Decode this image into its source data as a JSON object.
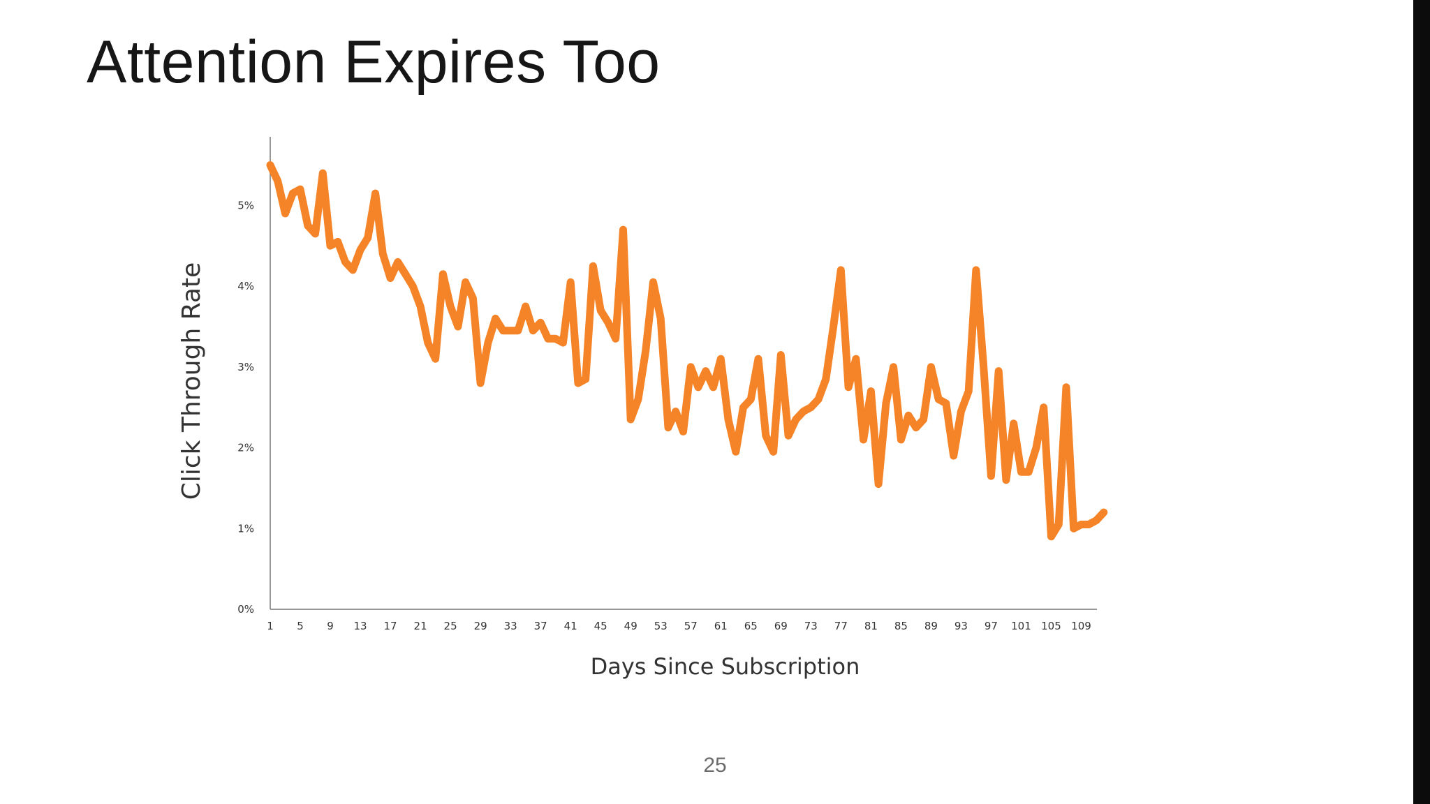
{
  "slide": {
    "title": "Attention Expires Too",
    "page_number": "25",
    "line_color": "#f58327"
  },
  "chart_data": {
    "type": "line",
    "xlabel": "Days Since Subscription",
    "ylabel": "Click Through Rate",
    "x_ticks": [
      1,
      5,
      9,
      13,
      17,
      21,
      25,
      29,
      33,
      37,
      41,
      45,
      49,
      53,
      57,
      61,
      65,
      69,
      73,
      77,
      81,
      85,
      89,
      93,
      97,
      101,
      105,
      109
    ],
    "y_ticks": [
      "0%",
      "1%",
      "2%",
      "3%",
      "4%",
      "5%"
    ],
    "xlim": [
      1,
      111
    ],
    "ylim": [
      0,
      5.85
    ],
    "grid": false,
    "series": [
      {
        "values": [
          5.5,
          5.3,
          4.9,
          5.15,
          5.2,
          4.75,
          4.65,
          5.4,
          4.5,
          4.55,
          4.3,
          4.2,
          4.45,
          4.6,
          5.15,
          4.4,
          4.1,
          4.3,
          4.15,
          4.0,
          3.75,
          3.3,
          3.1,
          4.15,
          3.75,
          3.5,
          4.05,
          3.85,
          2.8,
          3.3,
          3.6,
          3.45,
          3.45,
          3.45,
          3.75,
          3.45,
          3.55,
          3.35,
          3.35,
          3.3,
          4.05,
          2.8,
          2.85,
          4.25,
          3.7,
          3.55,
          3.35,
          4.7,
          2.35,
          2.6,
          3.2,
          4.05,
          3.6,
          2.25,
          2.45,
          2.2,
          3.0,
          2.75,
          2.95,
          2.75,
          3.1,
          2.35,
          1.95,
          2.5,
          2.6,
          3.1,
          2.15,
          1.95,
          3.15,
          2.15,
          2.35,
          2.45,
          2.5,
          2.6,
          2.85,
          3.5,
          4.2,
          2.75,
          3.1,
          2.1,
          2.7,
          1.55,
          2.55,
          3.0,
          2.1,
          2.4,
          2.25,
          2.35,
          3.0,
          2.6,
          2.55,
          1.9,
          2.45,
          2.7,
          4.2,
          3.0,
          1.65,
          2.95,
          1.6,
          2.3,
          1.7,
          1.7,
          2.0,
          2.5,
          0.9,
          1.05,
          2.75,
          1.0,
          1.05,
          1.05,
          1.1,
          1.2
        ]
      }
    ]
  }
}
